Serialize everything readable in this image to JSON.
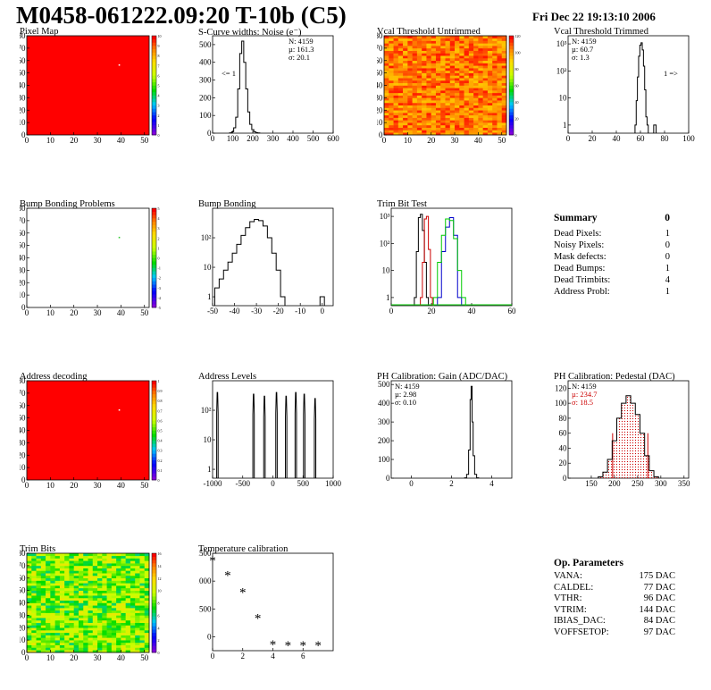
{
  "header": {
    "title": "M0458-061222.09:20 T-10b (C5)",
    "date": "Fri Dec 22 19:13:10 2006"
  },
  "summary": {
    "title": "Summary",
    "total": "0",
    "rows": [
      {
        "label": "Dead Pixels:",
        "value": "1"
      },
      {
        "label": "Noisy Pixels:",
        "value": "0"
      },
      {
        "label": "Mask defects:",
        "value": "0"
      },
      {
        "label": "Dead Bumps:",
        "value": "1"
      },
      {
        "label": "Dead Trimbits:",
        "value": "4"
      },
      {
        "label": "Address Probl:",
        "value": "1"
      }
    ]
  },
  "op_params": {
    "title": "Op. Parameters",
    "rows": [
      {
        "label": "VANA:",
        "value": "175 DAC"
      },
      {
        "label": "CALDEL:",
        "value": "77 DAC"
      },
      {
        "label": "VTHR:",
        "value": "96 DAC"
      },
      {
        "label": "VTRIM:",
        "value": "144 DAC"
      },
      {
        "label": "IBIAS_DAC:",
        "value": "84 DAC"
      },
      {
        "label": "VOFFSETOP:",
        "value": "97 DAC"
      }
    ]
  },
  "colors": {
    "hist_line": "#000000",
    "map_fill": "#ff0000",
    "fit_red": "#cc0000",
    "fit_green": "#00cc00",
    "fit_blue": "#0000cc"
  },
  "chart_data": [
    {
      "id": "pixel_map",
      "type": "heatmap",
      "title": "Pixel Map",
      "xlim": [
        0,
        52
      ],
      "ylim": [
        0,
        80
      ],
      "xticks": [
        "0",
        "10",
        "20",
        "30",
        "40",
        "50"
      ],
      "yticks": [
        "0",
        "10",
        "20",
        "30",
        "40",
        "50",
        "60",
        "70",
        "80"
      ],
      "zlim": [
        0,
        10
      ],
      "zticks": [
        "0",
        "1",
        "2",
        "3",
        "4",
        "5",
        "6",
        "7",
        "8",
        "9",
        "10"
      ],
      "pattern": "uniform",
      "special_pixels": [
        {
          "x": 39,
          "y": 56,
          "value": 0
        }
      ]
    },
    {
      "id": "scurve_noise",
      "type": "line",
      "title": "S-Curve widths: Noise (e⁻)",
      "xlim": [
        0,
        600
      ],
      "ylim": [
        0,
        550
      ],
      "xticks": [
        "0",
        "100",
        "200",
        "300",
        "400",
        "500",
        "600"
      ],
      "yticks": [
        "0",
        "100",
        "200",
        "300",
        "400",
        "500"
      ],
      "stats": [
        "N: 4159",
        "µ: 161.3",
        "σ: 20.1"
      ],
      "annotation": "<= 1",
      "x": [
        90,
        100,
        110,
        120,
        130,
        140,
        150,
        160,
        170,
        180,
        190,
        200,
        210,
        220,
        230
      ],
      "y": [
        2,
        8,
        30,
        90,
        250,
        450,
        520,
        400,
        250,
        120,
        50,
        20,
        8,
        3,
        1
      ]
    },
    {
      "id": "vcal_untrimmed",
      "type": "heatmap",
      "title": "Vcal Threshold Untrimmed",
      "xlim": [
        0,
        52
      ],
      "ylim": [
        0,
        80
      ],
      "xticks": [
        "0",
        "10",
        "20",
        "30",
        "40",
        "50"
      ],
      "yticks": [
        "0",
        "10",
        "20",
        "30",
        "40",
        "50",
        "60",
        "70",
        "80"
      ],
      "zlim": [
        0,
        130
      ],
      "zticks": [
        "0",
        "20",
        "40",
        "60",
        "80",
        "100",
        "120"
      ],
      "pattern": "noisy-orange"
    },
    {
      "id": "vcal_trimmed",
      "type": "line",
      "title": "Vcal Threshold Trimmed",
      "log_y": true,
      "xlim": [
        0,
        100
      ],
      "ylim": [
        0.5,
        2000
      ],
      "xticks": [
        "0",
        "20",
        "40",
        "60",
        "80",
        "100"
      ],
      "yticks": [
        "1",
        "10",
        "10²",
        "10³"
      ],
      "stats": [
        "N: 4159",
        "µ: 60.7",
        "σ: 1.3"
      ],
      "annotation": "1 =>",
      "x": [
        56,
        57,
        58,
        59,
        60,
        61,
        62,
        63,
        64,
        65,
        66
      ],
      "y": [
        1,
        8,
        60,
        350,
        900,
        1100,
        600,
        150,
        20,
        2,
        1
      ],
      "extra": [
        {
          "x": 72,
          "y": 1
        }
      ]
    },
    {
      "id": "bump_problems",
      "type": "heatmap",
      "title": "Bump Bonding Problems",
      "xlim": [
        0,
        52
      ],
      "ylim": [
        0,
        80
      ],
      "xticks": [
        "0",
        "10",
        "20",
        "30",
        "40",
        "50"
      ],
      "yticks": [
        "0",
        "10",
        "20",
        "30",
        "40",
        "50",
        "60",
        "70",
        "80"
      ],
      "zlim": [
        -5,
        5
      ],
      "zticks": [
        "-5",
        "-4",
        "-3",
        "-2",
        "-1",
        "0",
        "1",
        "2",
        "3",
        "4",
        "5"
      ],
      "pattern": "empty",
      "special_pixels": [
        {
          "x": 39,
          "y": 56,
          "value": 1
        }
      ]
    },
    {
      "id": "bump_bonding",
      "type": "line",
      "title": "Bump Bonding",
      "log_y": true,
      "xlim": [
        -50,
        5
      ],
      "ylim": [
        0.5,
        1000
      ],
      "xticks": [
        "-50",
        "-40",
        "-30",
        "-20",
        "-10",
        "0"
      ],
      "yticks": [
        "1",
        "10",
        "10²"
      ],
      "x": [
        -48,
        -46,
        -44,
        -42,
        -40,
        -38,
        -36,
        -34,
        -32,
        -30,
        -28,
        -26,
        -24,
        -22,
        -20,
        -18
      ],
      "y": [
        2,
        4,
        8,
        15,
        30,
        60,
        120,
        220,
        350,
        420,
        380,
        250,
        100,
        30,
        8,
        1
      ],
      "extra": [
        {
          "x": 0,
          "y": 1
        }
      ]
    },
    {
      "id": "trim_bit_test",
      "type": "line",
      "title": "Trim Bit Test",
      "log_y": true,
      "xlim": [
        0,
        60
      ],
      "ylim": [
        0.5,
        2000
      ],
      "xticks": [
        "0",
        "20",
        "40",
        "60"
      ],
      "yticks": [
        "1",
        "10",
        "10²",
        "10³"
      ],
      "series": [
        {
          "color": "#000000",
          "x": [
            12,
            13,
            14,
            15,
            16,
            17,
            18
          ],
          "y": [
            1,
            50,
            900,
            1200,
            300,
            20,
            1
          ]
        },
        {
          "color": "#cc0000",
          "x": [
            15,
            16,
            17,
            18,
            19,
            20
          ],
          "y": [
            1,
            20,
            800,
            1000,
            60,
            1
          ]
        },
        {
          "color": "#0000cc",
          "x": [
            24,
            26,
            28,
            30,
            32,
            34
          ],
          "y": [
            1,
            50,
            400,
            900,
            200,
            1
          ]
        },
        {
          "color": "#00cc00",
          "x": [
            22,
            24,
            26,
            28,
            30,
            32,
            34,
            36
          ],
          "y": [
            1,
            20,
            200,
            800,
            700,
            150,
            10,
            1
          ]
        }
      ]
    },
    {
      "id": "address_decoding",
      "type": "heatmap",
      "title": "Address decoding",
      "xlim": [
        0,
        52
      ],
      "ylim": [
        0,
        80
      ],
      "xticks": [
        "0",
        "10",
        "20",
        "30",
        "40",
        "50"
      ],
      "yticks": [
        "0",
        "10",
        "20",
        "30",
        "40",
        "50",
        "60",
        "70",
        "80"
      ],
      "zlim": [
        0,
        1
      ],
      "zticks": [
        "0",
        "0.1",
        "0.2",
        "0.3",
        "0.4",
        "0.5",
        "0.6",
        "0.7",
        "0.8",
        "0.9",
        "1"
      ],
      "pattern": "uniform",
      "special_pixels": [
        {
          "x": 39,
          "y": 56,
          "value": 0
        }
      ]
    },
    {
      "id": "address_levels",
      "type": "line",
      "title": "Address Levels",
      "log_y": true,
      "xlim": [
        -1000,
        1000
      ],
      "ylim": [
        0.5,
        1000
      ],
      "xticks": [
        "-1000",
        "-500",
        "0",
        "500",
        "1000"
      ],
      "yticks": [
        "1",
        "10",
        "10²"
      ],
      "peaks": [
        {
          "x": -920,
          "y": 400
        },
        {
          "x": -320,
          "y": 350
        },
        {
          "x": -140,
          "y": 300
        },
        {
          "x": 60,
          "y": 400
        },
        {
          "x": 220,
          "y": 300
        },
        {
          "x": 380,
          "y": 400
        },
        {
          "x": 520,
          "y": 350
        },
        {
          "x": 700,
          "y": 250
        }
      ]
    },
    {
      "id": "ph_gain",
      "type": "line",
      "title": "PH Calibration: Gain (ADC/DAC)",
      "xlim": [
        -1,
        5
      ],
      "ylim": [
        0,
        520
      ],
      "xticks": [
        "0",
        "2",
        "4"
      ],
      "yticks": [
        "0",
        "100",
        "200",
        "300",
        "400",
        "500"
      ],
      "stats": [
        "N: 4159",
        "µ: 2.98",
        "σ: 0.10"
      ],
      "x": [
        2.7,
        2.8,
        2.9,
        2.95,
        3.0,
        3.05,
        3.1,
        3.2,
        3.3
      ],
      "y": [
        2,
        20,
        150,
        420,
        490,
        300,
        120,
        20,
        2
      ]
    },
    {
      "id": "ph_pedestal",
      "type": "line",
      "title": "PH Calibration: Pedestal (DAC)",
      "xlim": [
        100,
        360
      ],
      "ylim": [
        0,
        130
      ],
      "xticks": [
        "150",
        "200",
        "250",
        "300",
        "350"
      ],
      "yticks": [
        "0",
        "20",
        "40",
        "60",
        "80",
        "100",
        "120"
      ],
      "stats": [
        "N: 4159",
        "µ: 234.7",
        "σ: 18.5"
      ],
      "x": [
        170,
        180,
        190,
        200,
        210,
        220,
        230,
        240,
        250,
        260,
        270,
        280,
        290
      ],
      "y": [
        2,
        8,
        25,
        50,
        80,
        100,
        110,
        100,
        85,
        60,
        30,
        10,
        2
      ],
      "markers_red": [
        196,
        272
      ]
    },
    {
      "id": "trim_bits",
      "type": "heatmap",
      "title": "Trim Bits",
      "xlim": [
        0,
        52
      ],
      "ylim": [
        0,
        80
      ],
      "xticks": [
        "0",
        "10",
        "20",
        "30",
        "40",
        "50"
      ],
      "yticks": [
        "0",
        "10",
        "20",
        "30",
        "40",
        "50",
        "60",
        "70",
        "80"
      ],
      "zlim": [
        0,
        16
      ],
      "zticks": [
        "0",
        "2",
        "4",
        "6",
        "8",
        "10",
        "12",
        "14",
        "16"
      ],
      "pattern": "noisy-green"
    },
    {
      "id": "temp_calibration",
      "type": "scatter",
      "title": "Temperature calibration",
      "xlim": [
        0,
        8
      ],
      "ylim": [
        -250,
        1500
      ],
      "xticks": [
        "0",
        "2",
        "4",
        "6"
      ],
      "yticks": [
        "0",
        "500",
        "1000",
        "1500"
      ],
      "x": [
        0,
        1,
        2,
        3,
        4,
        5,
        6,
        7
      ],
      "y": [
        1370,
        1110,
        800,
        340,
        -140,
        -150,
        -150,
        -150
      ]
    }
  ]
}
